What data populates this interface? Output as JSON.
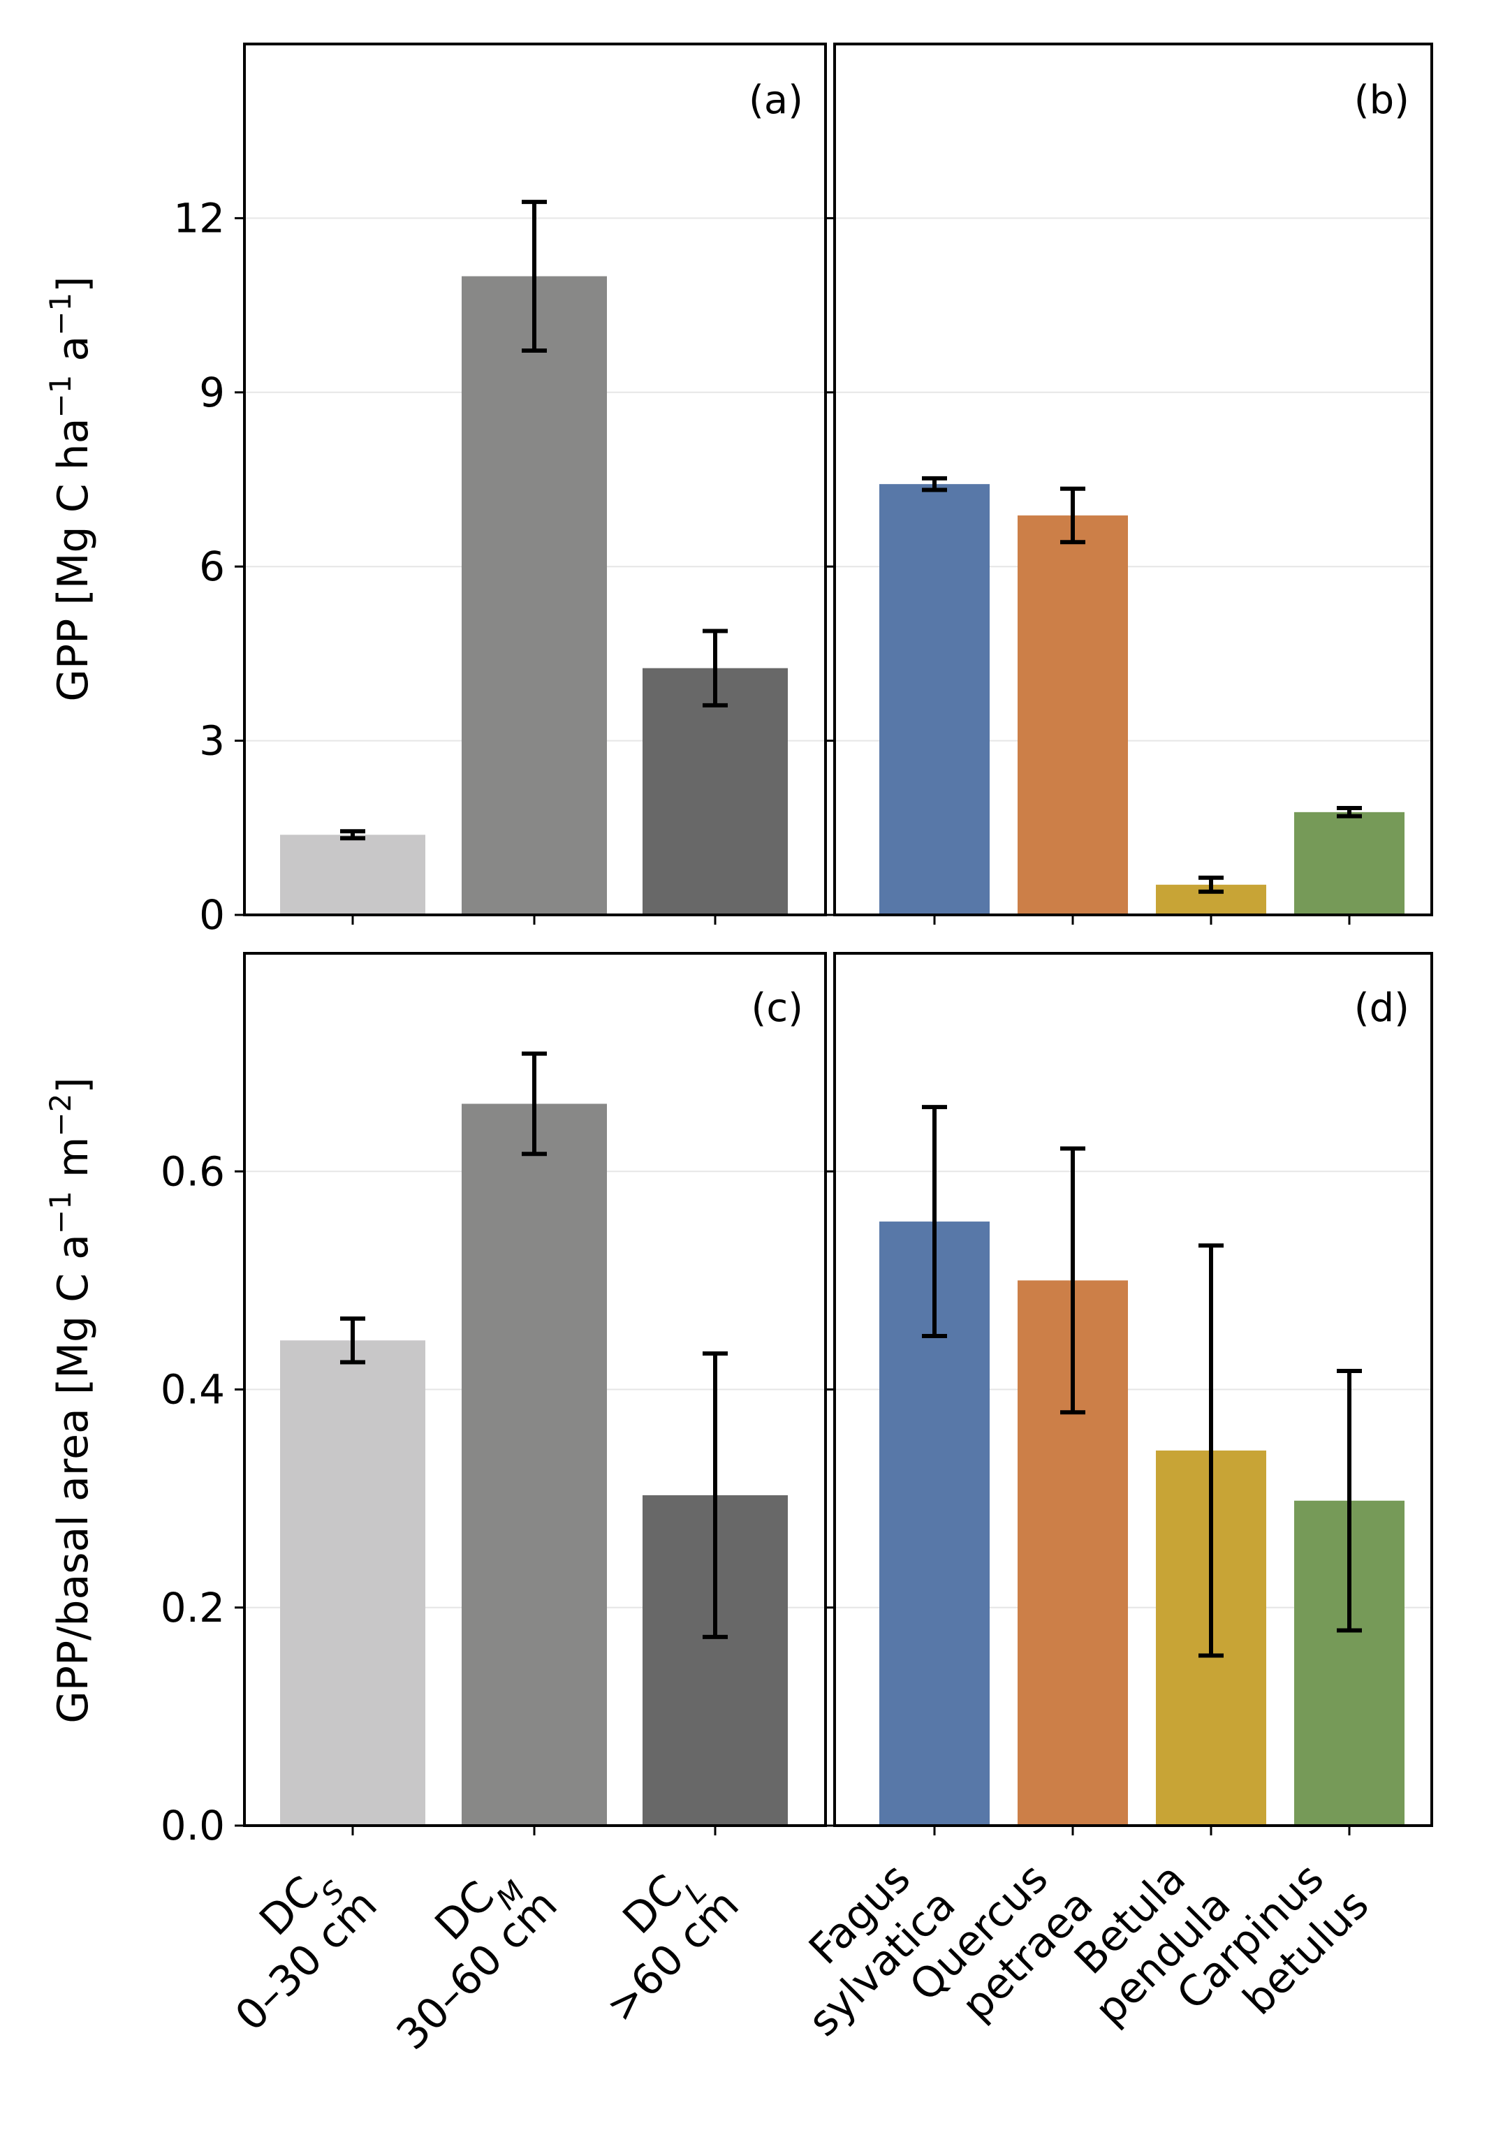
{
  "chart_data": [
    {
      "panel": "(a)",
      "type": "bar",
      "ylabel": "GPP [Mg C ha⁻¹ a⁻¹]",
      "ylim": [
        0,
        15
      ],
      "yticks": [
        "0",
        "3",
        "6",
        "9",
        "12"
      ],
      "yticks_values": [
        0,
        3,
        6,
        9,
        12
      ],
      "grid": true,
      "categories": [
        "DC_S 0–30 cm",
        "DC_M 30–60 cm",
        "DC_L >60 cm"
      ],
      "values": [
        1.38,
        11.0,
        4.25
      ],
      "errors": [
        0.06,
        1.28,
        0.64
      ],
      "colors": [
        "#c8c7c8",
        "#888887",
        "#686868"
      ]
    },
    {
      "panel": "(b)",
      "type": "bar",
      "ylim": [
        0,
        15
      ],
      "grid": true,
      "categories": [
        "Fagus sylvatica",
        "Quercus petraea",
        "Betula pendula",
        "Carpinus betulus"
      ],
      "values": [
        7.42,
        6.88,
        0.52,
        1.77
      ],
      "errors": [
        0.1,
        0.46,
        0.12,
        0.07
      ],
      "colors": [
        "#5878a8",
        "#cc7f48",
        "#c8a436",
        "#769a58"
      ]
    },
    {
      "panel": "(c)",
      "type": "bar",
      "ylabel": "GPP/basal area [Mg C a⁻¹ m⁻²]",
      "ylim": [
        0,
        0.8
      ],
      "yticks": [
        "0.0",
        "0.2",
        "0.4",
        "0.6"
      ],
      "yticks_values": [
        0,
        0.2,
        0.4,
        0.6
      ],
      "grid": true,
      "categories": [
        "DC_S 0–30 cm",
        "DC_M 30–60 cm",
        "DC_L >60 cm"
      ],
      "values": [
        0.445,
        0.662,
        0.303
      ],
      "errors": [
        0.02,
        0.046,
        0.13
      ],
      "colors": [
        "#c8c7c8",
        "#888887",
        "#686868"
      ]
    },
    {
      "panel": "(d)",
      "type": "bar",
      "ylim": [
        0,
        0.8
      ],
      "grid": true,
      "categories": [
        "Fagus sylvatica",
        "Quercus petraea",
        "Betula pendula",
        "Carpinus betulus"
      ],
      "values": [
        0.554,
        0.5,
        0.344,
        0.298
      ],
      "errors": [
        0.105,
        0.121,
        0.188,
        0.119
      ],
      "colors": [
        "#5878a8",
        "#cc7f48",
        "#c8a436",
        "#769a58"
      ]
    }
  ],
  "xcats_left": [
    {
      "main": "DC",
      "sub": "S",
      "line2": "0–30 cm"
    },
    {
      "main": "DC",
      "sub": "M",
      "line2": "30–60 cm"
    },
    {
      "main": "DC",
      "sub": "L",
      "line2": ">60 cm"
    }
  ],
  "xcats_right": [
    {
      "line1": "Fagus",
      "line2": "sylvatica"
    },
    {
      "line1": "Quercus",
      "line2": "petraea"
    },
    {
      "line1": "Betula",
      "line2": "pendula"
    },
    {
      "line1": "Carpinus",
      "line2": "betulus"
    }
  ],
  "ylabel_top_parts": {
    "pre": "GPP [Mg C ha",
    "sup1": "−1",
    "mid": " a",
    "sup2": "−1",
    "post": "]"
  },
  "ylabel_bottom_parts": {
    "pre": "GPP/basal area [Mg C a",
    "sup1": "−1",
    "mid": " m",
    "sup2": "−2",
    "post": "]"
  }
}
